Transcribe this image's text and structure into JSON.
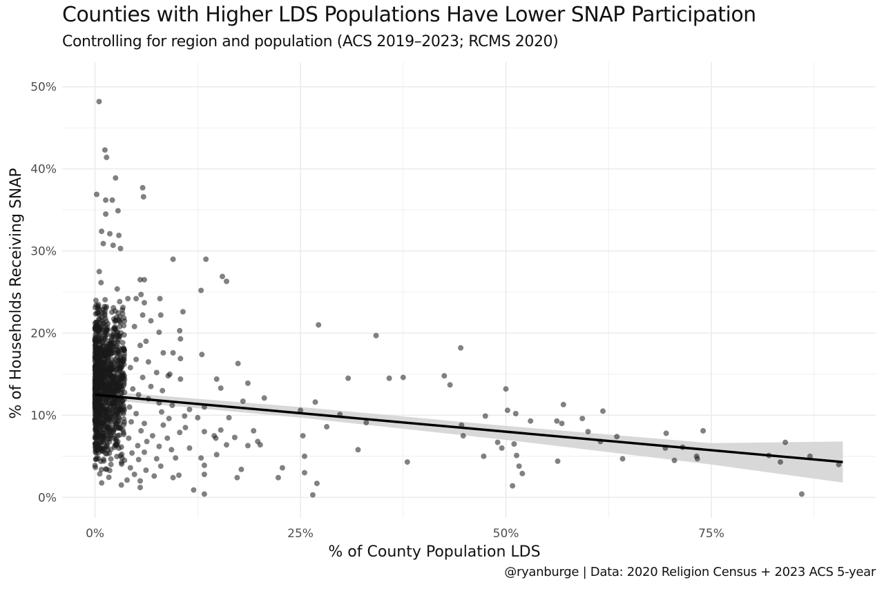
{
  "chart_data": {
    "type": "scatter",
    "title": "Counties with Higher LDS Populations Have Lower SNAP Participation",
    "subtitle": "Controlling for region and population (ACS 2019–2023; RCMS 2020)",
    "caption": "@ryanburge | Data: 2020 Religion Census + 2023 ACS 5-year",
    "xlabel": "% of County Population LDS",
    "ylabel": "% of Households Receiving SNAP",
    "xlim": [
      -4,
      95
    ],
    "ylim": [
      -2.5,
      53
    ],
    "x_ticks": [
      0,
      25,
      50,
      75
    ],
    "x_tick_labels": [
      "0%",
      "25%",
      "50%",
      "75%"
    ],
    "y_ticks": [
      0,
      10,
      20,
      30,
      40,
      50
    ],
    "y_tick_labels": [
      "0%",
      "10%",
      "20%",
      "30%",
      "40%",
      "50%"
    ],
    "grid": true,
    "colors": {
      "points": "#1a1a1a",
      "line": "#000000",
      "ribbon": "#d4d4d4",
      "grid": "#ebebeb"
    },
    "trend": {
      "x_start": 0,
      "y_start": 12.5,
      "x_end": 91,
      "y_end": 4.3,
      "ci": [
        [
          0,
          12.0,
          13.0
        ],
        [
          25,
          9.7,
          11.0
        ],
        [
          50,
          7.0,
          8.7
        ],
        [
          75,
          4.0,
          6.6
        ],
        [
          91,
          1.8,
          6.8
        ]
      ]
    },
    "points_dense": [
      [
        0.5,
        48.2
      ],
      [
        1.2,
        42.3
      ],
      [
        1.4,
        41.4
      ],
      [
        2.5,
        38.9
      ],
      [
        0.2,
        36.9
      ],
      [
        1.3,
        36.2
      ],
      [
        2.1,
        36.2
      ],
      [
        1.3,
        34.5
      ],
      [
        2.8,
        34.9
      ],
      [
        5.8,
        37.7
      ],
      [
        5.9,
        36.6
      ],
      [
        0.8,
        32.4
      ],
      [
        1.8,
        32.1
      ],
      [
        2.9,
        31.9
      ],
      [
        1.0,
        30.9
      ],
      [
        2.2,
        30.7
      ],
      [
        3.1,
        30.3
      ],
      [
        9.5,
        29.0
      ],
      [
        13.5,
        29.0
      ],
      [
        15.5,
        26.9
      ],
      [
        16.0,
        26.3
      ],
      [
        12.9,
        25.2
      ],
      [
        5.5,
        26.5
      ],
      [
        6.0,
        26.5
      ],
      [
        5.6,
        24.7
      ],
      [
        6.0,
        23.7
      ],
      [
        4.0,
        24.2
      ],
      [
        5.0,
        24.2
      ],
      [
        7.9,
        24.2
      ],
      [
        10.7,
        22.6
      ],
      [
        8.0,
        22.2
      ],
      [
        7.8,
        20.1
      ],
      [
        10.3,
        20.3
      ],
      [
        10.4,
        19.3
      ],
      [
        8.3,
        17.6
      ],
      [
        9.5,
        17.6
      ],
      [
        10.4,
        16.9
      ],
      [
        13.0,
        17.4
      ],
      [
        17.4,
        16.3
      ],
      [
        9.1,
        15.0
      ],
      [
        10.4,
        14.4
      ],
      [
        14.8,
        14.4
      ],
      [
        15.3,
        13.3
      ],
      [
        18.6,
        13.9
      ],
      [
        20.6,
        12.1
      ],
      [
        18.0,
        11.7
      ],
      [
        11.5,
        10.7
      ],
      [
        10.9,
        9.9
      ],
      [
        12.5,
        9.7
      ],
      [
        13.3,
        11.0
      ],
      [
        16.3,
        9.7
      ],
      [
        11.0,
        8.5
      ],
      [
        13.3,
        8.0
      ],
      [
        15.3,
        8.2
      ],
      [
        17.0,
        7.3
      ],
      [
        19.3,
        8.1
      ],
      [
        19.8,
        6.8
      ],
      [
        20.1,
        6.4
      ],
      [
        12.9,
        4.8
      ],
      [
        13.3,
        3.9
      ],
      [
        14.5,
        7.5
      ],
      [
        14.7,
        7.2
      ],
      [
        16.0,
        6.4
      ],
      [
        18.6,
        6.3
      ],
      [
        14.8,
        5.2
      ],
      [
        13.3,
        2.8
      ],
      [
        12.0,
        0.9
      ],
      [
        13.3,
        0.4
      ],
      [
        17.3,
        2.4
      ],
      [
        17.8,
        3.4
      ],
      [
        22.3,
        2.4
      ],
      [
        22.8,
        3.6
      ],
      [
        6.2,
        19.0
      ],
      [
        6.5,
        16.5
      ],
      [
        7.5,
        15.2
      ],
      [
        8.9,
        14.8
      ],
      [
        6.8,
        13.5
      ],
      [
        8.2,
        13.0
      ],
      [
        6.5,
        12.0
      ],
      [
        7.8,
        11.5
      ],
      [
        9.4,
        11.2
      ],
      [
        8.1,
        10.4
      ],
      [
        9.0,
        9.6
      ],
      [
        6.0,
        9.0
      ],
      [
        8.3,
        8.8
      ],
      [
        7.0,
        7.5
      ],
      [
        8.8,
        7.2
      ],
      [
        6.3,
        6.8
      ],
      [
        7.8,
        6.2
      ],
      [
        9.3,
        5.8
      ],
      [
        6.0,
        5.5
      ],
      [
        7.5,
        4.7
      ],
      [
        8.0,
        3.8
      ],
      [
        6.2,
        3.3
      ],
      [
        7.2,
        2.6
      ],
      [
        5.5,
        2.0
      ],
      [
        5.5,
        1.2
      ],
      [
        9.5,
        2.4
      ],
      [
        10.2,
        2.7
      ],
      [
        9.8,
        4.8
      ],
      [
        11.5,
        6.0
      ],
      [
        10.3,
        7.9
      ],
      [
        5.8,
        22.2
      ],
      [
        6.8,
        21.5
      ],
      [
        4.8,
        20.8
      ],
      [
        5.5,
        18.5
      ],
      [
        5.0,
        16.8
      ],
      [
        4.3,
        15.8
      ],
      [
        5.8,
        14.6
      ],
      [
        4.6,
        13.2
      ],
      [
        5.3,
        12.5
      ],
      [
        4.2,
        11.0
      ],
      [
        5.0,
        10.2
      ],
      [
        4.4,
        9.2
      ],
      [
        5.6,
        8.1
      ],
      [
        4.1,
        7.2
      ],
      [
        5.2,
        6.3
      ],
      [
        4.5,
        5.4
      ],
      [
        5.3,
        4.6
      ],
      [
        4.3,
        3.6
      ],
      [
        4.8,
        2.8
      ],
      [
        3.9,
        2.1
      ],
      [
        3.2,
        1.5
      ]
    ],
    "points_sparse": [
      [
        27.2,
        21.0
      ],
      [
        34.2,
        19.7
      ],
      [
        44.5,
        18.2
      ],
      [
        29.8,
        10.1
      ],
      [
        30.8,
        14.5
      ],
      [
        35.8,
        14.5
      ],
      [
        37.5,
        14.6
      ],
      [
        42.5,
        14.8
      ],
      [
        43.2,
        13.7
      ],
      [
        26.8,
        11.6
      ],
      [
        25.0,
        10.6
      ],
      [
        28.2,
        8.6
      ],
      [
        33.0,
        9.1
      ],
      [
        25.3,
        7.5
      ],
      [
        32.0,
        5.8
      ],
      [
        38.0,
        4.3
      ],
      [
        25.5,
        5.0
      ],
      [
        25.5,
        3.0
      ],
      [
        27.0,
        1.7
      ],
      [
        26.5,
        0.3
      ],
      [
        44.6,
        8.8
      ],
      [
        44.8,
        7.5
      ],
      [
        47.5,
        9.9
      ],
      [
        47.3,
        5.0
      ],
      [
        49.0,
        6.7
      ],
      [
        49.5,
        6.0
      ],
      [
        50.0,
        13.2
      ],
      [
        50.2,
        10.6
      ],
      [
        51.2,
        10.2
      ],
      [
        51.0,
        6.5
      ],
      [
        51.3,
        5.1
      ],
      [
        51.6,
        3.8
      ],
      [
        52.0,
        2.9
      ],
      [
        50.8,
        1.4
      ],
      [
        53.0,
        9.3
      ],
      [
        56.2,
        9.3
      ],
      [
        56.8,
        9.0
      ],
      [
        56.3,
        4.4
      ],
      [
        57.0,
        11.3
      ],
      [
        59.3,
        9.6
      ],
      [
        60.0,
        8.0
      ],
      [
        61.5,
        6.8
      ],
      [
        61.8,
        10.5
      ],
      [
        63.5,
        7.4
      ],
      [
        64.2,
        4.7
      ],
      [
        69.5,
        7.8
      ],
      [
        69.4,
        6.0
      ],
      [
        70.5,
        4.5
      ],
      [
        71.5,
        6.1
      ],
      [
        73.2,
        5.0
      ],
      [
        73.3,
        4.7
      ],
      [
        74.0,
        8.1
      ],
      [
        82.0,
        5.1
      ],
      [
        83.4,
        4.3
      ],
      [
        84.0,
        6.7
      ],
      [
        86.0,
        0.4
      ],
      [
        87.0,
        5.0
      ],
      [
        90.5,
        4.0
      ]
    ],
    "dense_cluster": {
      "x_min": 0,
      "x_max": 3.6,
      "y_min": 1.5,
      "y_max": 30,
      "n": 1100
    }
  }
}
